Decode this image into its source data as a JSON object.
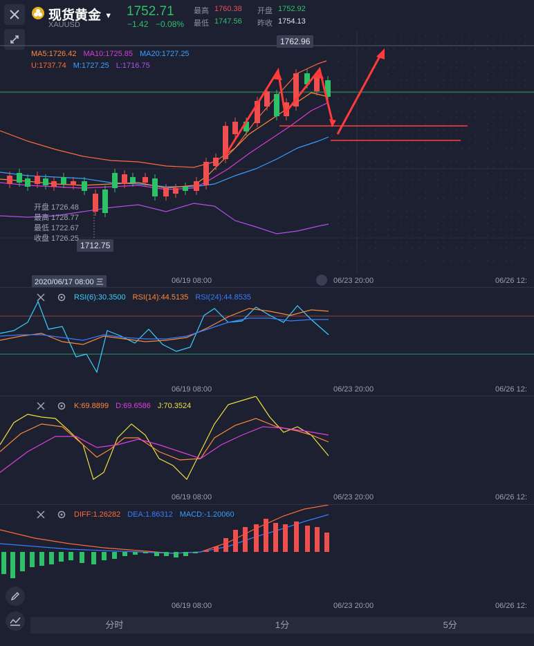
{
  "header": {
    "title": "现货黄金",
    "symbol": "XAUUSD",
    "price": "1752.71",
    "change": "−1.42",
    "change_pct": "−0.08%",
    "stats": [
      {
        "label": "最高",
        "value": "1760.38",
        "color": "#e8505b"
      },
      {
        "label": "开盘",
        "value": "1752.92",
        "color": "#2fc06a"
      },
      {
        "label": "最低",
        "value": "1747.56",
        "color": "#2fc06a"
      },
      {
        "label": "昨收",
        "value": "1754.13",
        "color": "#e0e3ea"
      }
    ]
  },
  "main_chart": {
    "ma_line1": [
      {
        "text": "MA5:1726.42",
        "color": "#ff8a3c"
      },
      {
        "text": "MA10:1725.85",
        "color": "#d93bd9"
      },
      {
        "text": "MA20:1727.25",
        "color": "#3aa0ff"
      }
    ],
    "ma_line2": [
      {
        "text": "U:1737.74",
        "color": "#ff6a3c"
      },
      {
        "text": "M:1727.25",
        "color": "#3aa0ff"
      },
      {
        "text": "L:1716.75",
        "color": "#b050e8"
      }
    ],
    "high_marker": "1762.96",
    "low_marker": "1712.75",
    "ohlc": [
      {
        "label": "开盘",
        "value": "1726.48"
      },
      {
        "label": "最高",
        "value": "1728.77"
      },
      {
        "label": "最低",
        "value": "1722.67"
      },
      {
        "label": "收盘",
        "value": "1726.25"
      }
    ],
    "cursor_time": "2020/06/17 08:00 三"
  },
  "time_axis": [
    "06/19 08:00",
    "06/23 20:00",
    "06/26 12:"
  ],
  "rsi": {
    "labels": [
      {
        "text": "RSI(6):30.3500",
        "color": "#3ad0ff"
      },
      {
        "text": "RSI(14):44.5135",
        "color": "#ff8a3c"
      },
      {
        "text": "RSI(24):44.8535",
        "color": "#3a7cff"
      }
    ]
  },
  "kdj": {
    "labels": [
      {
        "text": "K:69.8899",
        "color": "#ff8a3c"
      },
      {
        "text": "D:69.6586",
        "color": "#e040e0"
      },
      {
        "text": "J:70.3524",
        "color": "#f0e040"
      }
    ]
  },
  "macd": {
    "labels": [
      {
        "text": "DIFF:1.26282",
        "color": "#ff6a3c"
      },
      {
        "text": "DEA:1.86312",
        "color": "#3a7cff"
      },
      {
        "text": "MACD:-1.20060",
        "color": "#3a9cff"
      }
    ]
  },
  "tabs": [
    "分时",
    "1分",
    "5分"
  ],
  "colors": {
    "up": "#ef4f4f",
    "down": "#2fc06a",
    "bg": "#1c2030"
  }
}
